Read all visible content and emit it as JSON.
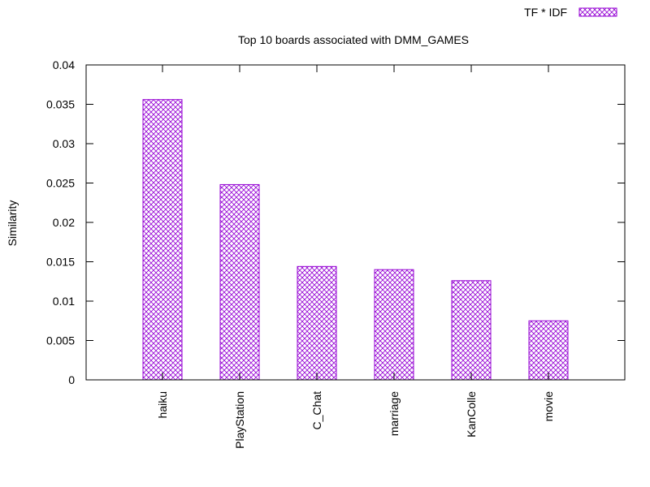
{
  "chart_data": {
    "type": "bar",
    "title": "Top 10 boards associated with DMM_GAMES",
    "xlabel": "",
    "ylabel": "Similarity",
    "categories": [
      "haiku",
      "PlayStation",
      "C_Chat",
      "marriage",
      "KanColle",
      "movie"
    ],
    "series": [
      {
        "name": "TF * IDF",
        "values": [
          0.0356,
          0.0248,
          0.0144,
          0.014,
          0.0126,
          0.0075
        ]
      }
    ],
    "ylim": [
      0,
      0.04
    ],
    "yticks": [
      "0",
      "0.005",
      "0.01",
      "0.015",
      "0.02",
      "0.025",
      "0.03",
      "0.035",
      "0.04"
    ],
    "grid": false,
    "legend": "top-right",
    "fill_pattern": "crosshatch",
    "colors": {
      "bar": "#9400d3",
      "axis": "#000000"
    }
  }
}
